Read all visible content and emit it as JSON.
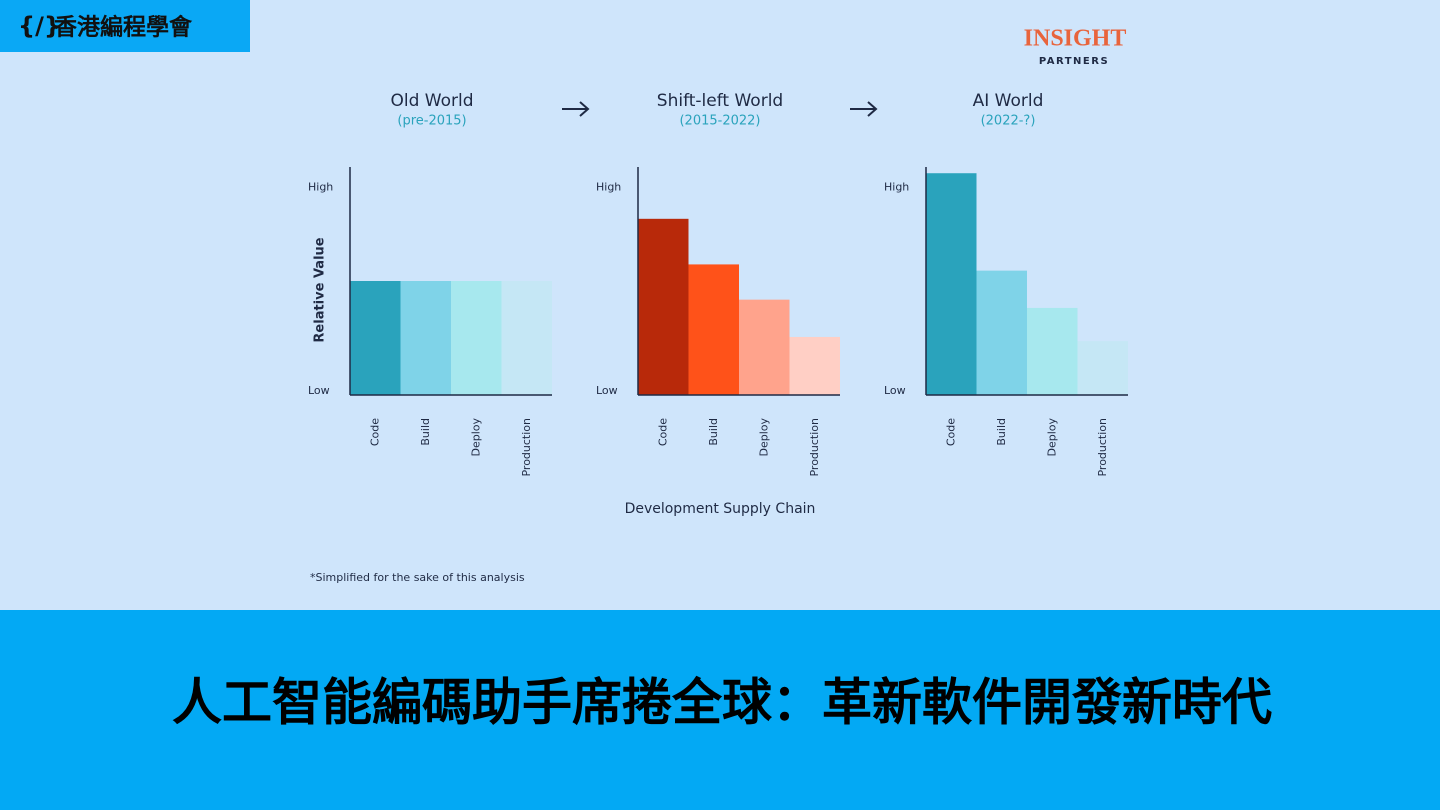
{
  "header": {
    "title": "香港編程學會"
  },
  "logo": {
    "name": "INSIGHT",
    "sub": "PARTNERS"
  },
  "supply_chain_label": "Development Supply Chain",
  "footnote": "*Simplified for the sake of this analysis",
  "footer": {
    "title": "人工智能編碼助手席捲全球：革新軟件開發新時代"
  },
  "chart_data": [
    {
      "type": "bar",
      "title": "Old World",
      "subtitle": "(pre-2015)",
      "ylabel": "Relative Value",
      "categories": [
        "Code",
        "Build",
        "Deploy",
        "Production"
      ],
      "values": [
        55,
        55,
        55,
        55
      ],
      "colors": [
        "#2aa3bc",
        "#7fd3e8",
        "#a7e8ee",
        "#c5e7f5"
      ],
      "ylim": [
        0,
        110
      ],
      "yticks": [
        {
          "value": 0,
          "label": "Low"
        },
        {
          "value": 100,
          "label": "High"
        }
      ]
    },
    {
      "type": "bar",
      "title": "Shift-left World",
      "subtitle": "(2015-2022)",
      "categories": [
        "Code",
        "Build",
        "Deploy",
        "Production"
      ],
      "values": [
        85,
        63,
        46,
        28
      ],
      "colors": [
        "#b8290a",
        "#ff5219",
        "#ffa38c",
        "#ffcfc5"
      ],
      "ylim": [
        0,
        110
      ],
      "yticks": [
        {
          "value": 0,
          "label": "Low"
        },
        {
          "value": 100,
          "label": "High"
        }
      ]
    },
    {
      "type": "bar",
      "title": "AI World",
      "subtitle": "(2022-?)",
      "categories": [
        "Code",
        "Build",
        "Deploy",
        "Production"
      ],
      "values": [
        107,
        60,
        42,
        26
      ],
      "colors": [
        "#2aa3bc",
        "#7fd3e8",
        "#a7e8ee",
        "#c5e7f5"
      ],
      "ylim": [
        0,
        110
      ],
      "yticks": [
        {
          "value": 0,
          "label": "Low"
        },
        {
          "value": 100,
          "label": "High"
        }
      ]
    }
  ]
}
